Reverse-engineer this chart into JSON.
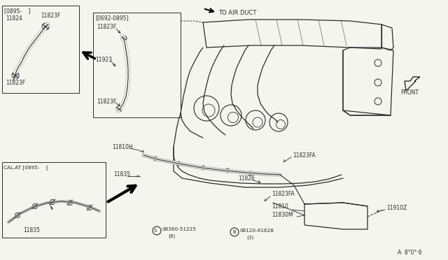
{
  "bg_color": "#f5f5f0",
  "line_color": "#2a2a2a",
  "gray_color": "#888888",
  "labels": {
    "top_left_box": "[0895-    ]",
    "mid_box": "[0692-0895]",
    "bot_box_header": "CAL.AT [0895-    ]",
    "air_duct": "TO AIR DUCT",
    "front": "FRONT",
    "p11824": "11824",
    "p11823F_1": "11823F",
    "p11823F_2": "11823F",
    "p11823F_3": "11823F",
    "p11923": "11923",
    "p11810H": "11810H",
    "p11835": "11835",
    "p11826": "11826",
    "p11823FA_1": "11823FA",
    "p11823FA_2": "11823FA",
    "p11810": "11810",
    "p11830M": "11830M",
    "p11910Z": "11910Z",
    "bolt_s": "08360-51225",
    "bolt_s_n": "(8)",
    "bolt_b": "08120-61628",
    "bolt_b_n": "(3)",
    "diagram_code": "A· 8°0°·6"
  }
}
